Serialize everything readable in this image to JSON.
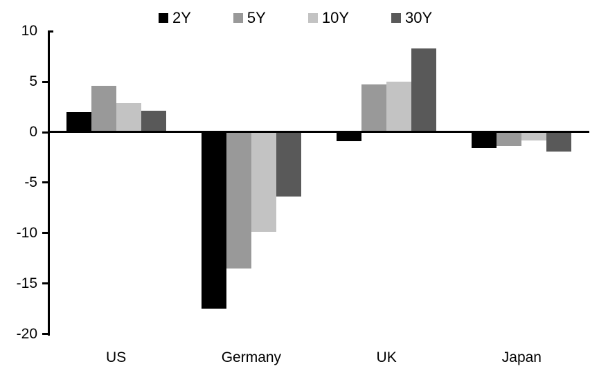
{
  "chart_data": {
    "type": "bar",
    "title": "",
    "categories": [
      "US",
      "Germany",
      "UK",
      "Japan"
    ],
    "series": [
      {
        "name": "2Y",
        "color": "#000000",
        "values": [
          2.0,
          -17.5,
          -0.9,
          -1.6
        ]
      },
      {
        "name": "5Y",
        "color": "#999999",
        "values": [
          4.6,
          -13.5,
          4.7,
          -1.4
        ]
      },
      {
        "name": "10Y",
        "color": "#c3c3c3",
        "values": [
          2.9,
          -9.9,
          5.0,
          -0.8
        ]
      },
      {
        "name": "30Y",
        "color": "#595959",
        "values": [
          2.1,
          -6.4,
          8.3,
          -1.9
        ]
      }
    ],
    "y_axis": {
      "min": -20,
      "max": 10,
      "tick_step": 5,
      "ticks": [
        10,
        5,
        0,
        -5,
        -10,
        -15,
        -20
      ]
    },
    "legend_position": "top",
    "grid": false,
    "background_color": "#ffffff",
    "axis_color": "#000000"
  }
}
